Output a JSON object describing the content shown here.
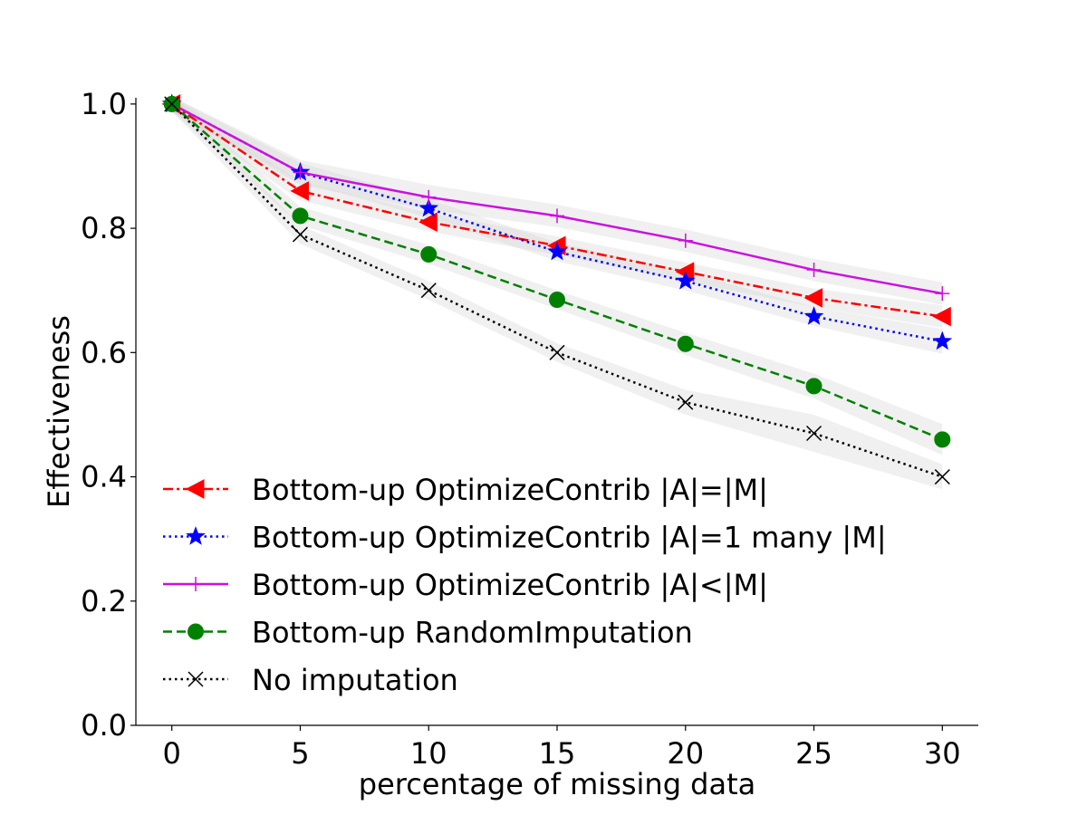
{
  "chart_data": {
    "type": "line",
    "title": "",
    "xlabel": "percentage of missing data",
    "ylabel": "Effectiveness",
    "x": [
      0,
      5,
      10,
      15,
      20,
      25,
      30
    ],
    "xticks": [
      "0",
      "5",
      "10",
      "15",
      "20",
      "25",
      "30"
    ],
    "yticks": [
      "0.0",
      "0.2",
      "0.4",
      "0.6",
      "0.8",
      "1.0"
    ],
    "xlim": [
      -1.4,
      31.4
    ],
    "ylim": [
      0,
      1.01
    ],
    "grid": false,
    "legend_position": "lower-left",
    "series": [
      {
        "name": "Bottom-up OptimizeContrib |A|=|M|",
        "values": [
          1.0,
          0.86,
          0.81,
          0.772,
          0.73,
          0.688,
          0.658
        ],
        "band": [
          0.012,
          0.015,
          0.015,
          0.015,
          0.015,
          0.015,
          0.018
        ],
        "color": "#ff0000",
        "dash": "dashdot",
        "marker": "triangle-left"
      },
      {
        "name": "Bottom-up OptimizeContrib |A|=1 many |M|",
        "values": [
          1.0,
          0.89,
          0.832,
          0.762,
          0.715,
          0.658,
          0.618
        ],
        "band": [
          0.012,
          0.015,
          0.015,
          0.015,
          0.015,
          0.015,
          0.02
        ],
        "color": "#0000ff",
        "dash": "dotted",
        "marker": "star"
      },
      {
        "name": "Bottom-up OptimizeContrib |A|<|M|",
        "values": [
          1.0,
          0.89,
          0.85,
          0.82,
          0.78,
          0.733,
          0.695
        ],
        "band": [
          0.012,
          0.02,
          0.02,
          0.018,
          0.018,
          0.018,
          0.018
        ],
        "color": "#cc11dd",
        "dash": "solid",
        "marker": "plus"
      },
      {
        "name": "Bottom-up RandomImputation",
        "values": [
          1.0,
          0.82,
          0.758,
          0.685,
          0.614,
          0.546,
          0.46
        ],
        "band": [
          0.012,
          0.015,
          0.015,
          0.015,
          0.018,
          0.02,
          0.025
        ],
        "color": "#008000",
        "dash": "dashed",
        "marker": "circle"
      },
      {
        "name": "No imputation",
        "values": [
          1.0,
          0.79,
          0.7,
          0.6,
          0.52,
          0.47,
          0.4
        ],
        "band": [
          0.012,
          0.015,
          0.015,
          0.015,
          0.02,
          0.03,
          0.02
        ],
        "color": "#000000",
        "dash": "dotted",
        "marker": "x"
      }
    ]
  }
}
